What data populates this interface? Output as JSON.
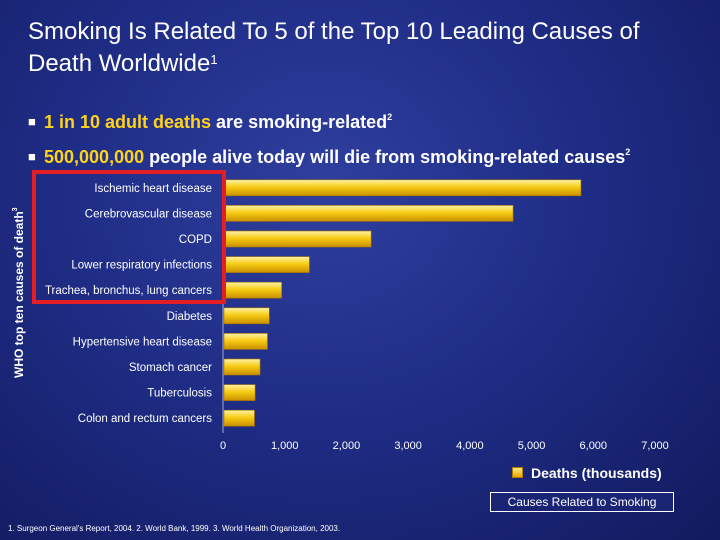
{
  "slide": {
    "title_line1": "Smoking Is Related To 5 of the Top 10 Leading Causes of",
    "title_line2": "Death Worldwide",
    "title_sup": "1",
    "bullet1": {
      "highlight": "1 in 10 adult deaths",
      "rest": " are smoking-related",
      "sup": "2"
    },
    "bullet2": {
      "highlight": "500,000,000",
      "rest": " people alive today will die from smoking-related causes",
      "sup": "2"
    },
    "footnote": "1. Surgeon General's Report, 2004.  2.  World Bank, 1999. 3.  World Health Organization, 2003.",
    "causes_box": "Causes Related to Smoking"
  },
  "chart_data": {
    "type": "bar",
    "orientation": "horizontal",
    "ylabel": "WHO top ten causes of death",
    "ylabel_sup": "3",
    "categories": [
      "Ischemic heart disease",
      "Cerebrovascular disease",
      "COPD",
      "Lower respiratory infections",
      "Trachea, bronchus, lung cancers",
      "Diabetes",
      "Hypertensive heart disease",
      "Stomach cancer",
      "Tuberculosis",
      "Colon and rectum cancers"
    ],
    "series": [
      {
        "name": "Deaths (thousands)",
        "values": [
          5800,
          4700,
          2400,
          1400,
          950,
          750,
          720,
          600,
          520,
          510
        ]
      }
    ],
    "xlim": [
      0,
      7000
    ],
    "xticks": [
      "0",
      "1,000",
      "2,000",
      "3,000",
      "4,000",
      "5,000",
      "6,000",
      "7,000"
    ],
    "smoking_related_count": 5,
    "colors": {
      "bar": "#f2c200",
      "highlight_box": "#e31e24"
    }
  }
}
